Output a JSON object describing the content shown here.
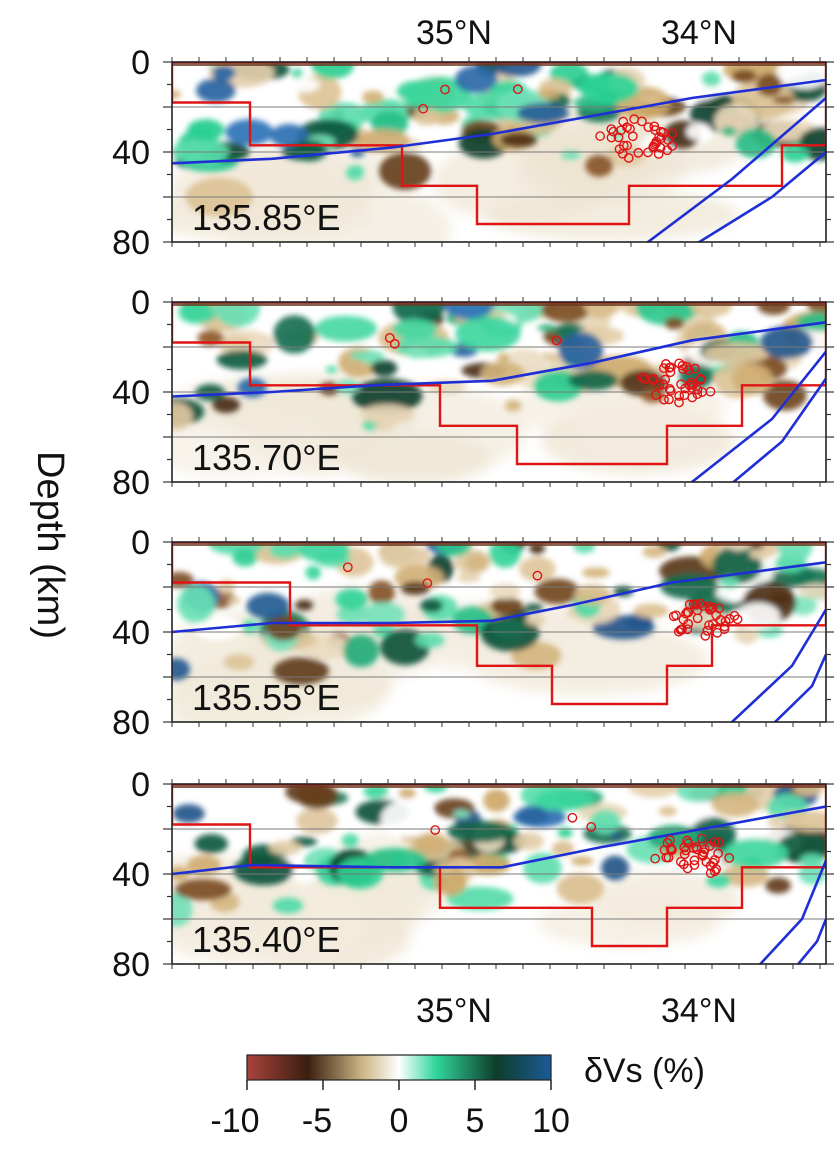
{
  "chart_data": {
    "type": "heatmap",
    "ylabel": "Depth (km)",
    "y_ticks": [
      0,
      40,
      80
    ],
    "ylim": [
      80,
      0
    ],
    "x_ticks_top": [
      "35°N",
      "34°N"
    ],
    "x_ticks_bottom": [
      "35°N",
      "34°N"
    ],
    "panels": [
      {
        "label": "135.85°E"
      },
      {
        "label": "135.70°E"
      },
      {
        "label": "135.55°E"
      },
      {
        "label": "135.40°E"
      }
    ],
    "colorbar": {
      "title": "δVs (%)",
      "ticks": [
        "-10",
        "-5",
        "0",
        "5",
        "10"
      ],
      "range": [
        -10,
        10
      ],
      "colors": [
        "#a8433d",
        "#3a1f10",
        "#cdb685",
        "#ffffff",
        "#31d69d",
        "#0e3d2b",
        "#1b5b97"
      ]
    },
    "colors": {
      "boundary": "#e01414",
      "slab": "#1f2fd6",
      "hypocenter": "#e01414",
      "gridline": "#7a7a7a"
    }
  }
}
